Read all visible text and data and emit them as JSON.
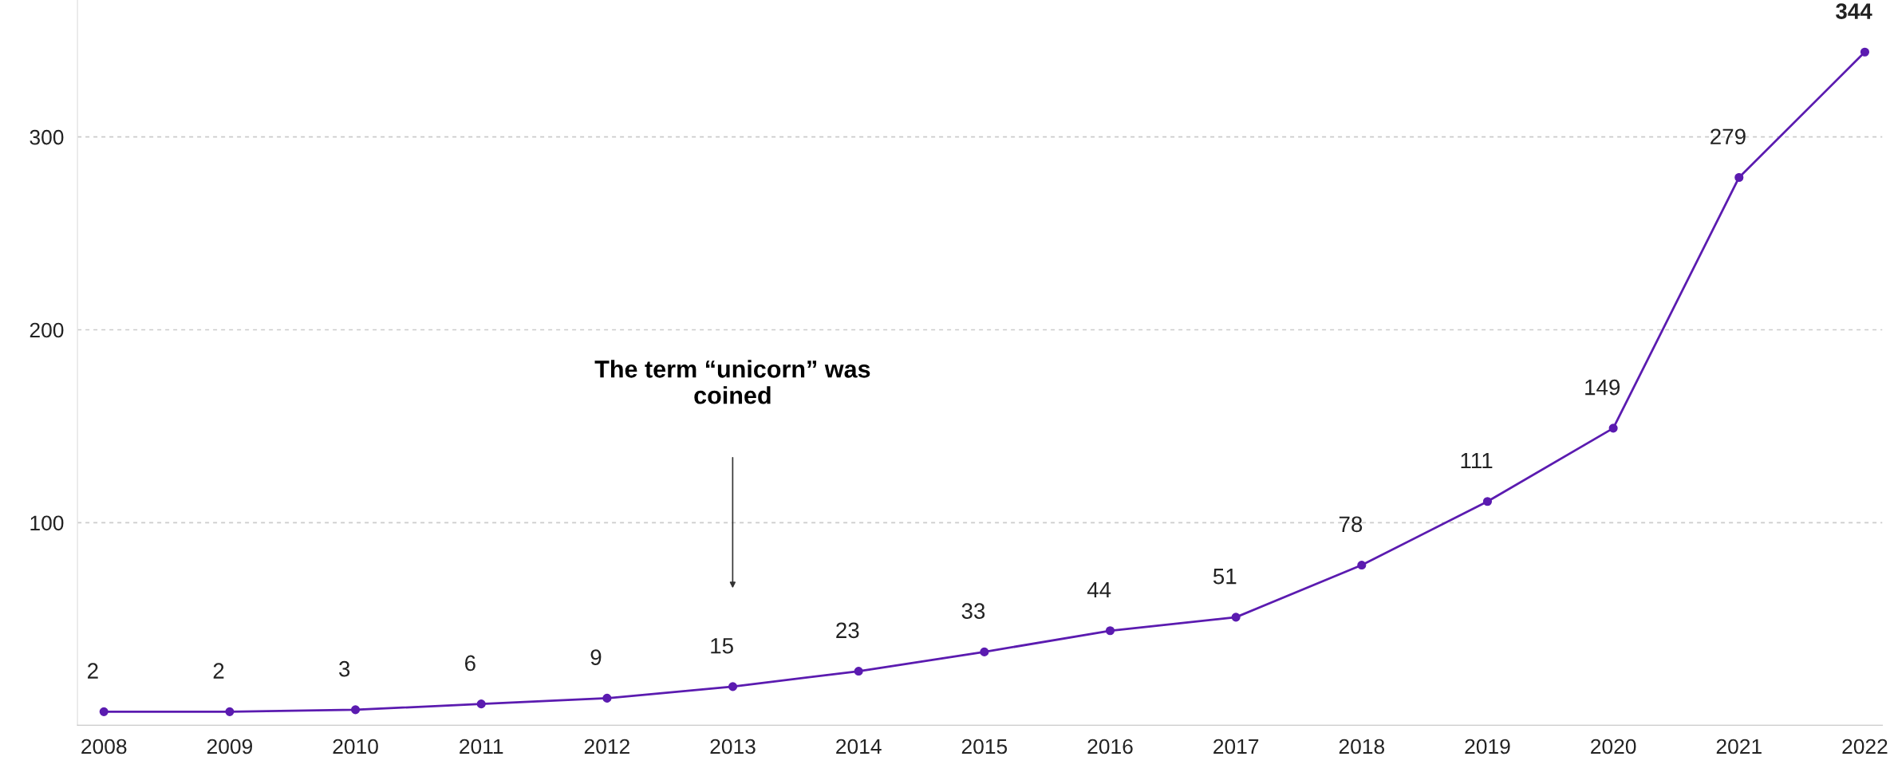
{
  "chart_data": {
    "type": "line",
    "categories": [
      "2008",
      "2009",
      "2010",
      "2011",
      "2012",
      "2013",
      "2014",
      "2015",
      "2016",
      "2017",
      "2018",
      "2019",
      "2020",
      "2021",
      "2022"
    ],
    "series": [
      {
        "color": "#5b1bb0",
        "values": [
          2,
          2,
          3,
          6,
          9,
          15,
          23,
          33,
          44,
          51,
          78,
          111,
          149,
          279,
          344
        ]
      }
    ],
    "ylim": [
      -5,
      371
    ],
    "yticks": [
      100,
      200,
      300
    ],
    "grid": "y",
    "marker": "circle",
    "line_style": "solid",
    "data_labels": true,
    "legend": false,
    "annotations": [
      "The term “unicorn” was\ncoined"
    ]
  }
}
